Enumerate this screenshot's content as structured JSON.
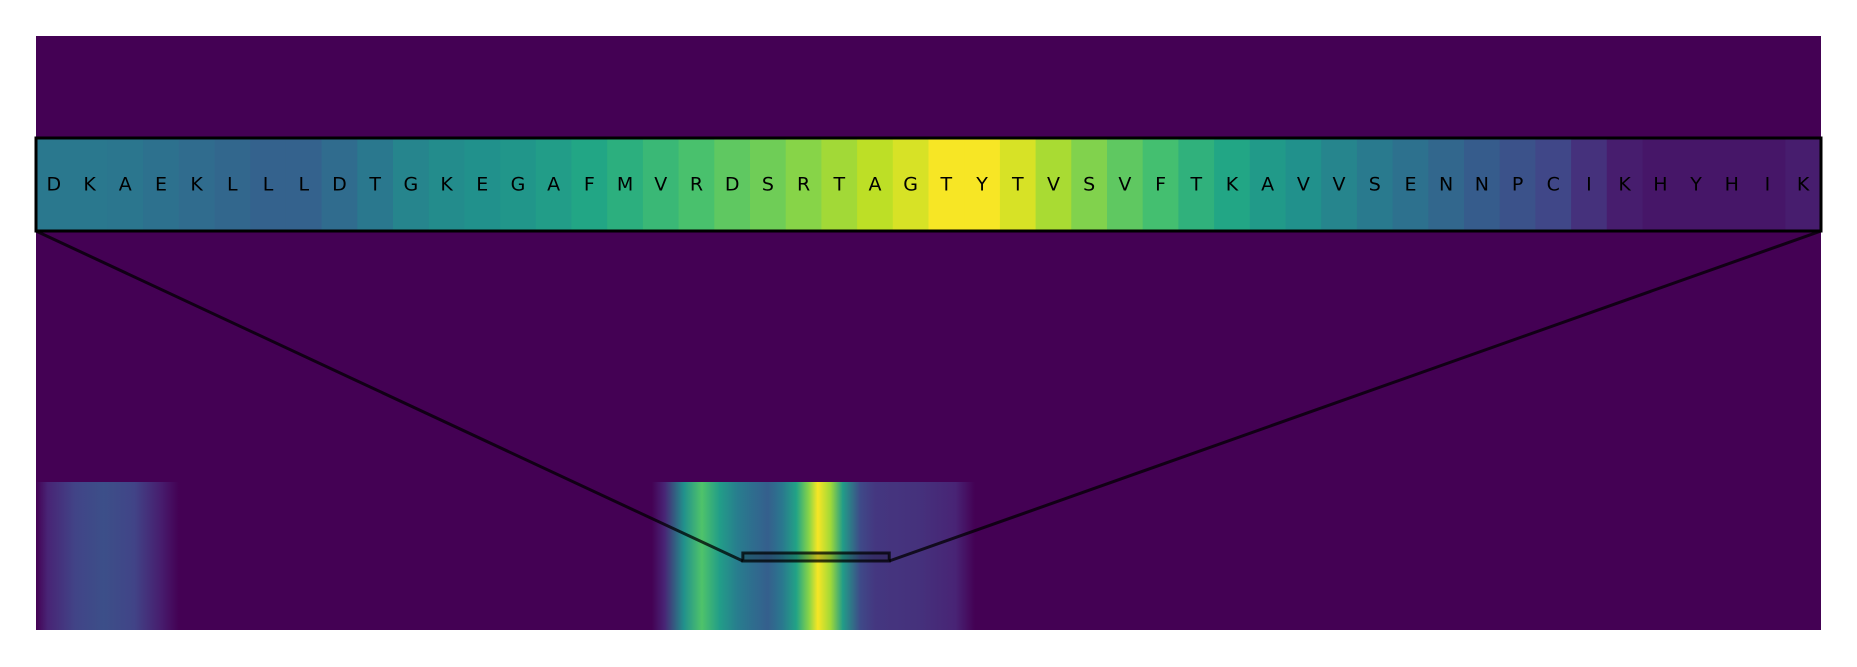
{
  "chart_data": {
    "type": "heatmap",
    "background_color": "#440154",
    "colormap": "viridis",
    "zoom_window": {
      "residues": [
        "D",
        "K",
        "A",
        "E",
        "K",
        "L",
        "L",
        "L",
        "D",
        "T",
        "G",
        "K",
        "E",
        "G",
        "A",
        "F",
        "M",
        "V",
        "R",
        "D",
        "S",
        "R",
        "T",
        "A",
        "G",
        "T",
        "Y",
        "T",
        "V",
        "S",
        "V",
        "F",
        "T",
        "K",
        "A",
        "V",
        "V",
        "S",
        "E",
        "N",
        "N",
        "P",
        "C",
        "I",
        "K",
        "H",
        "Y",
        "H",
        "I",
        "K"
      ],
      "values": [
        0.4,
        0.4,
        0.39,
        0.37,
        0.35,
        0.33,
        0.31,
        0.31,
        0.35,
        0.4,
        0.45,
        0.48,
        0.5,
        0.52,
        0.55,
        0.59,
        0.63,
        0.67,
        0.71,
        0.75,
        0.78,
        0.82,
        0.86,
        0.9,
        0.94,
        0.99,
        0.99,
        0.94,
        0.87,
        0.81,
        0.75,
        0.7,
        0.64,
        0.59,
        0.54,
        0.5,
        0.45,
        0.41,
        0.37,
        0.33,
        0.29,
        0.25,
        0.21,
        0.14,
        0.08,
        0.06,
        0.06,
        0.06,
        0.06,
        0.08
      ]
    },
    "overview_track": {
      "profile": [
        [
          0.0,
          0.0
        ],
        [
          0.0065,
          0.1
        ],
        [
          0.022,
          0.2
        ],
        [
          0.038,
          0.24
        ],
        [
          0.055,
          0.2
        ],
        [
          0.07,
          0.08
        ],
        [
          0.08,
          0.0
        ],
        [
          0.345,
          0.0
        ],
        [
          0.352,
          0.1
        ],
        [
          0.363,
          0.5
        ],
        [
          0.373,
          0.72
        ],
        [
          0.383,
          0.55
        ],
        [
          0.393,
          0.42
        ],
        [
          0.401,
          0.36
        ],
        [
          0.41,
          0.3
        ],
        [
          0.418,
          0.4
        ],
        [
          0.426,
          0.58
        ],
        [
          0.433,
          0.82
        ],
        [
          0.438,
          0.99
        ],
        [
          0.445,
          0.86
        ],
        [
          0.452,
          0.55
        ],
        [
          0.462,
          0.22
        ],
        [
          0.47,
          0.16
        ],
        [
          0.48,
          0.15
        ],
        [
          0.495,
          0.14
        ],
        [
          0.515,
          0.1
        ],
        [
          0.526,
          0.0
        ],
        [
          1.0,
          0.0
        ]
      ],
      "zoom_start": 0.396,
      "zoom_end": 0.478
    }
  }
}
